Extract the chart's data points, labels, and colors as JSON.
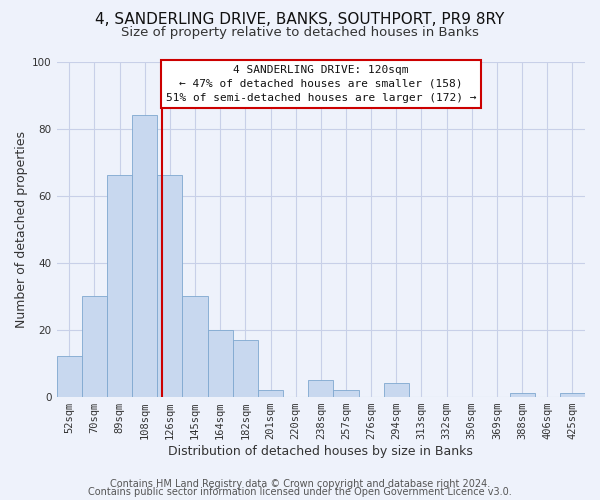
{
  "title": "4, SANDERLING DRIVE, BANKS, SOUTHPORT, PR9 8RY",
  "subtitle": "Size of property relative to detached houses in Banks",
  "xlabel": "Distribution of detached houses by size in Banks",
  "ylabel": "Number of detached properties",
  "categories": [
    "52sqm",
    "70sqm",
    "89sqm",
    "108sqm",
    "126sqm",
    "145sqm",
    "164sqm",
    "182sqm",
    "201sqm",
    "220sqm",
    "238sqm",
    "257sqm",
    "276sqm",
    "294sqm",
    "313sqm",
    "332sqm",
    "350sqm",
    "369sqm",
    "388sqm",
    "406sqm",
    "425sqm"
  ],
  "values": [
    12,
    30,
    66,
    84,
    66,
    30,
    20,
    17,
    2,
    0,
    5,
    2,
    0,
    4,
    0,
    0,
    0,
    0,
    1,
    0,
    1
  ],
  "bar_color": "#c8d8ef",
  "bar_edge_color": "#7fa8d0",
  "vline_color": "#cc0000",
  "vline_position": 3.67,
  "ylim": [
    0,
    100
  ],
  "yticks": [
    0,
    20,
    40,
    60,
    80,
    100
  ],
  "annotation_title": "4 SANDERLING DRIVE: 120sqm",
  "annotation_line1": "← 47% of detached houses are smaller (158)",
  "annotation_line2": "51% of semi-detached houses are larger (172) →",
  "annotation_box_color": "#ffffff",
  "annotation_box_edge": "#cc0000",
  "footer1": "Contains HM Land Registry data © Crown copyright and database right 2024.",
  "footer2": "Contains public sector information licensed under the Open Government Licence v3.0.",
  "bg_color": "#eef2fb",
  "grid_color": "#c8d0e8",
  "title_fontsize": 11,
  "subtitle_fontsize": 9.5,
  "axis_label_fontsize": 9,
  "tick_fontsize": 7.5,
  "footer_fontsize": 7,
  "ann_fontsize": 8
}
